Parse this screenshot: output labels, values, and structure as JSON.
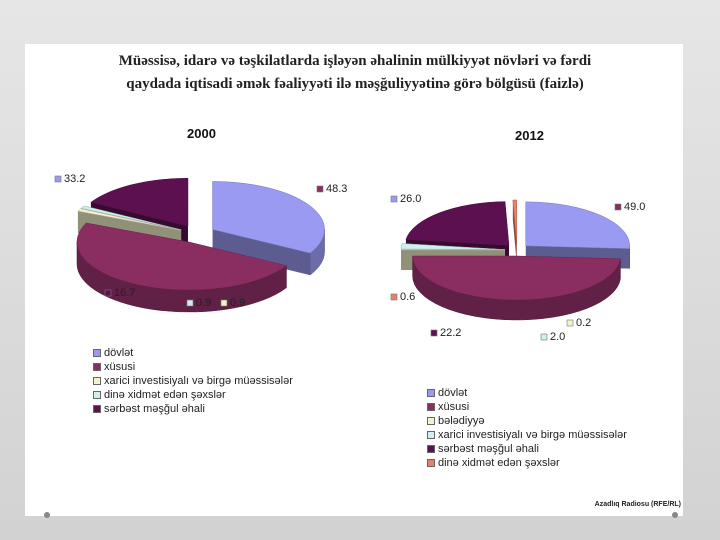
{
  "title": {
    "line1": "Müəssisə, idarə və təşkilatlarda işləyən əhalinin mülkiyyət növləri və fərdi",
    "line2": "qaydada iqtisadi əmək fəaliyyəti ilə məşğuliyyətinə görə bölgüsü (faizlə)"
  },
  "source": "Azadlıq Radiosu (RFE/RL)",
  "chart_data": [
    {
      "type": "pie",
      "title": "2000",
      "slices": [
        {
          "label": "dövlət",
          "value": 33.2,
          "value_label": "33.2",
          "color": "#9a9af2"
        },
        {
          "label": "xüsusi",
          "value": 48.3,
          "value_label": "48.3",
          "color": "#8a2e62"
        },
        {
          "label": "xarici investisiyalı və birgə müəssisələr",
          "value": 0.9,
          "value_label": "0.9",
          "color": "#f2f2cc"
        },
        {
          "label": "dinə xidmət edən şəxslər",
          "value": 0.9,
          "value_label": "0.9",
          "color": "#cfeef0"
        },
        {
          "label": "sərbəst məşğul əhali",
          "value": 16.7,
          "value_label": "16.7",
          "color": "#5c1050"
        }
      ],
      "legend_order": [
        "dövlət",
        "xüsusi",
        "xarici investisiyalı və birgə müəssisələr",
        "dinə xidmət edən şəxslər",
        "sərbəst məşğul əhali"
      ]
    },
    {
      "type": "pie",
      "title": "2012",
      "slices": [
        {
          "label": "dövlət",
          "value": 26.0,
          "value_label": "26.0",
          "color": "#9a9af2"
        },
        {
          "label": "xüsusi",
          "value": 49.0,
          "value_label": "49.0",
          "color": "#8a2e62"
        },
        {
          "label": "bələdiyyə",
          "value": 0.2,
          "value_label": "0.2",
          "color": "#f2f2cc"
        },
        {
          "label": "xarici investisiyalı və birgə müəssisələr",
          "value": 2.0,
          "value_label": "2.0",
          "color": "#cfeef0"
        },
        {
          "label": "sərbəst məşğul əhali",
          "value": 22.2,
          "value_label": "22.2",
          "color": "#5c1050"
        },
        {
          "label": "dinə xidmət edən şəxslər",
          "value": 0.6,
          "value_label": "0.6",
          "color": "#e8806a"
        }
      ],
      "legend_order": [
        "dövlət",
        "xüsusi",
        "bələdiyyə",
        "xarici investisiyalı və birgə müəssisələr",
        "sərbəst məşğul əhali",
        "dinə xidmət edən şəxslər"
      ]
    }
  ]
}
